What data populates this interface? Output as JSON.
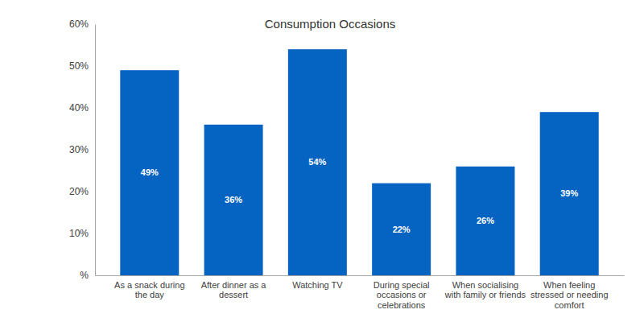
{
  "chart_data": {
    "type": "bar",
    "title": "Consumption Occasions",
    "categories": [
      "As a snack during the day",
      "After dinner as a dessert",
      "Watching TV",
      "During special occasions or celebrations",
      "When socialising with family or friends",
      "When feeling stressed or needing comfort"
    ],
    "values": [
      49,
      36,
      54,
      22,
      26,
      39
    ],
    "value_labels": [
      "49%",
      "36%",
      "54%",
      "22%",
      "26%",
      "39%"
    ],
    "color": "#0563C1",
    "ylim": [
      0,
      60
    ],
    "yticks": [
      {
        "value": 0,
        "label": "%"
      },
      {
        "value": 10,
        "label": "10%"
      },
      {
        "value": 20,
        "label": "20%"
      },
      {
        "value": 30,
        "label": "30%"
      },
      {
        "value": 40,
        "label": "40%"
      },
      {
        "value": 50,
        "label": "50%"
      },
      {
        "value": 60,
        "label": "60%"
      }
    ],
    "grid": false,
    "data_labels": true
  }
}
